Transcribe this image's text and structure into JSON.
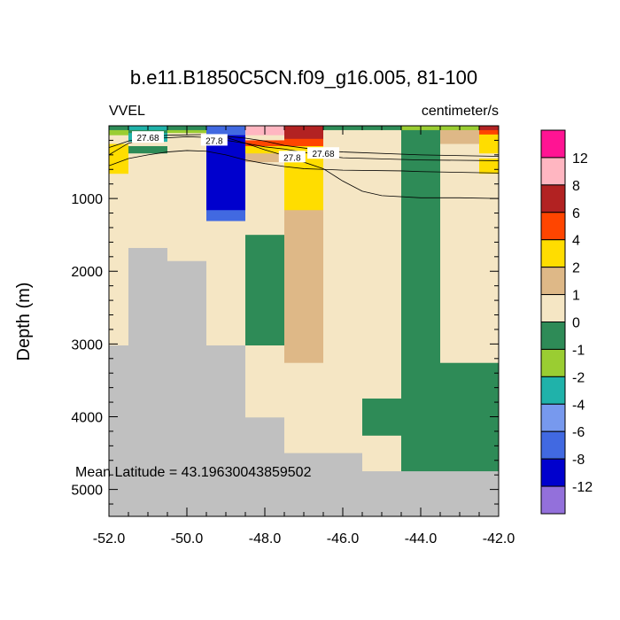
{
  "chart_data": {
    "type": "heatmap",
    "title": "b.e11.B1850C5CN.f09_g16.005, 81-100",
    "left_label": "VVEL",
    "right_label": "centimeter/s",
    "ylabel": "Depth (m)",
    "xlabel": "",
    "xlim": [
      -52.0,
      -42.0
    ],
    "ylim": [
      5370,
      0
    ],
    "x_ticks": [
      -52.0,
      -50.0,
      -48.0,
      -46.0,
      -44.0,
      -42.0
    ],
    "x_tick_labels": [
      "-52.0",
      "-50.0",
      "-48.0",
      "-46.0",
      "-44.0",
      "-42.0"
    ],
    "y_ticks": [
      1000,
      2000,
      3000,
      4000,
      5000
    ],
    "y_tick_labels": [
      "1000",
      "2000",
      "3000",
      "4000",
      "5000"
    ],
    "annotation": "Mean Latitude = 43.19630043859502",
    "colorbar": {
      "labels": [
        "12",
        "8",
        "6",
        "4",
        "2",
        "1",
        "0",
        "-1",
        "-2",
        "-4",
        "-6",
        "-8",
        "-12"
      ],
      "colors": [
        "#ff1493",
        "#ffb6c1",
        "#b22222",
        "#ff4500",
        "#ffdd00",
        "#deb887",
        "#f5e6c4",
        "#2e8b57",
        "#9acd32",
        "#20b2aa",
        "#7799ee",
        "#4169e1",
        "#0000cd",
        "#9370db"
      ]
    },
    "colors": {
      "land": "#c0c0c0",
      "background": "#f5e6c4"
    },
    "x_edges": [
      -52.0,
      -51.5,
      -50.5,
      -49.5,
      -48.5,
      -47.5,
      -46.5,
      -45.5,
      -44.5,
      -43.5,
      -42.5,
      -42.0
    ],
    "columns": [
      {
        "x_range": [
          -52.0,
          -51.5
        ],
        "cells": [
          {
            "d": [
              0,
              60
            ],
            "c": "#2e8b57"
          },
          {
            "d": [
              60,
              130
            ],
            "c": "#9acd32"
          },
          {
            "d": [
              130,
              250
            ],
            "c": "#f5e6c4"
          },
          {
            "d": [
              250,
              660
            ],
            "c": "#ffdd00"
          },
          {
            "d": [
              660,
              3020
            ],
            "c": "#f5e6c4"
          },
          {
            "d": [
              3020,
              5370
            ],
            "c": "#c0c0c0"
          }
        ]
      },
      {
        "x_range": [
          -51.5,
          -50.5
        ],
        "cells": [
          {
            "d": [
              0,
              60
            ],
            "c": "#20b2aa"
          },
          {
            "d": [
              60,
              100
            ],
            "c": "#2e8b57"
          },
          {
            "d": [
              100,
              220
            ],
            "c": "#20b2aa"
          },
          {
            "d": [
              220,
              280
            ],
            "c": "#f5e6c4"
          },
          {
            "d": [
              280,
              380
            ],
            "c": "#2e8b57"
          },
          {
            "d": [
              380,
              1680
            ],
            "c": "#f5e6c4"
          },
          {
            "d": [
              1680,
              5370
            ],
            "c": "#c0c0c0"
          }
        ]
      },
      {
        "x_range": [
          -50.5,
          -49.5
        ],
        "cells": [
          {
            "d": [
              0,
              60
            ],
            "c": "#2e8b57"
          },
          {
            "d": [
              60,
              100
            ],
            "c": "#9acd32"
          },
          {
            "d": [
              100,
              1860
            ],
            "c": "#f5e6c4"
          },
          {
            "d": [
              1860,
              5370
            ],
            "c": "#c0c0c0"
          }
        ]
      },
      {
        "x_range": [
          -49.5,
          -48.5
        ],
        "cells": [
          {
            "d": [
              0,
              130
            ],
            "c": "#4169e1"
          },
          {
            "d": [
              130,
              1160
            ],
            "c": "#0000cd"
          },
          {
            "d": [
              1160,
              1310
            ],
            "c": "#4169e1"
          },
          {
            "d": [
              1310,
              3020
            ],
            "c": "#f5e6c4"
          },
          {
            "d": [
              3020,
              5370
            ],
            "c": "#c0c0c0"
          }
        ]
      },
      {
        "x_range": [
          -48.5,
          -47.5
        ],
        "cells": [
          {
            "d": [
              0,
              130
            ],
            "c": "#ffb6c1"
          },
          {
            "d": [
              130,
              200
            ],
            "c": "#f5e6c4"
          },
          {
            "d": [
              200,
              280
            ],
            "c": "#ff4500"
          },
          {
            "d": [
              280,
              380
            ],
            "c": "#ffdd00"
          },
          {
            "d": [
              380,
              500
            ],
            "c": "#deb887"
          },
          {
            "d": [
              500,
              1500
            ],
            "c": "#f5e6c4"
          },
          {
            "d": [
              1500,
              3020
            ],
            "c": "#2e8b57"
          },
          {
            "d": [
              3020,
              4010
            ],
            "c": "#f5e6c4"
          },
          {
            "d": [
              4010,
              5370
            ],
            "c": "#c0c0c0"
          }
        ]
      },
      {
        "x_range": [
          -47.5,
          -46.5
        ],
        "cells": [
          {
            "d": [
              0,
              180
            ],
            "c": "#b22222"
          },
          {
            "d": [
              180,
              280
            ],
            "c": "#ff4500"
          },
          {
            "d": [
              280,
              1160
            ],
            "c": "#ffdd00"
          },
          {
            "d": [
              1160,
              3260
            ],
            "c": "#deb887"
          },
          {
            "d": [
              3260,
              4500
            ],
            "c": "#f5e6c4"
          },
          {
            "d": [
              4500,
              5370
            ],
            "c": "#c0c0c0"
          }
        ]
      },
      {
        "x_range": [
          -46.5,
          -45.5
        ],
        "cells": [
          {
            "d": [
              0,
              60
            ],
            "c": "#2e8b57"
          },
          {
            "d": [
              60,
              4500
            ],
            "c": "#f5e6c4"
          },
          {
            "d": [
              4500,
              5370
            ],
            "c": "#c0c0c0"
          }
        ]
      },
      {
        "x_range": [
          -45.5,
          -44.5
        ],
        "cells": [
          {
            "d": [
              0,
              60
            ],
            "c": "#2e8b57"
          },
          {
            "d": [
              60,
              3750
            ],
            "c": "#f5e6c4"
          },
          {
            "d": [
              3750,
              4260
            ],
            "c": "#2e8b57"
          },
          {
            "d": [
              4260,
              4750
            ],
            "c": "#f5e6c4"
          },
          {
            "d": [
              4750,
              5370
            ],
            "c": "#c0c0c0"
          }
        ]
      },
      {
        "x_range": [
          -44.5,
          -43.5
        ],
        "cells": [
          {
            "d": [
              0,
              60
            ],
            "c": "#9acd32"
          },
          {
            "d": [
              60,
              4750
            ],
            "c": "#2e8b57"
          },
          {
            "d": [
              4750,
              5370
            ],
            "c": "#c0c0c0"
          }
        ]
      },
      {
        "x_range": [
          -43.5,
          -42.5
        ],
        "cells": [
          {
            "d": [
              0,
              60
            ],
            "c": "#9acd32"
          },
          {
            "d": [
              60,
              250
            ],
            "c": "#deb887"
          },
          {
            "d": [
              250,
              3260
            ],
            "c": "#f5e6c4"
          },
          {
            "d": [
              3260,
              4750
            ],
            "c": "#2e8b57"
          },
          {
            "d": [
              4750,
              5370
            ],
            "c": "#c0c0c0"
          }
        ]
      },
      {
        "x_range": [
          -42.5,
          -42.0
        ],
        "cells": [
          {
            "d": [
              0,
              60
            ],
            "c": "#b22222"
          },
          {
            "d": [
              60,
              120
            ],
            "c": "#ff4500"
          },
          {
            "d": [
              120,
              380
            ],
            "c": "#ffdd00"
          },
          {
            "d": [
              380,
              450
            ],
            "c": "#f5e6c4"
          },
          {
            "d": [
              450,
              660
            ],
            "c": "#ffdd00"
          },
          {
            "d": [
              660,
              3260
            ],
            "c": "#f5e6c4"
          },
          {
            "d": [
              3260,
              4750
            ],
            "c": "#2e8b57"
          },
          {
            "d": [
              4750,
              5370
            ],
            "c": "#c0c0c0"
          }
        ]
      }
    ],
    "contours": [
      {
        "label": "27.68",
        "points": [
          [
            -52.0,
            300
          ],
          [
            -51.5,
            210
          ],
          [
            -51.0,
            160
          ],
          [
            -50.5,
            130
          ],
          [
            -49.5,
            120
          ],
          [
            -48.5,
            170
          ],
          [
            -48.0,
            210
          ],
          [
            -47.5,
            270
          ],
          [
            -46.5,
            340
          ],
          [
            -46.0,
            360
          ],
          [
            -44.0,
            400
          ],
          [
            -42.0,
            420
          ]
        ]
      },
      {
        "label": "",
        "points": [
          [
            -52.0,
            400
          ],
          [
            -51.5,
            240
          ],
          [
            -51.0,
            180
          ],
          [
            -50.0,
            150
          ],
          [
            -49.5,
            160
          ],
          [
            -48.5,
            240
          ],
          [
            -48.0,
            290
          ],
          [
            -47.5,
            320
          ],
          [
            -46.5,
            410
          ],
          [
            -46.0,
            440
          ],
          [
            -44.0,
            470
          ],
          [
            -42.0,
            480
          ]
        ]
      },
      {
        "label": "27.8",
        "points": [
          [
            -52.0,
            550
          ],
          [
            -51.5,
            450
          ],
          [
            -51.0,
            400
          ],
          [
            -50.5,
            360
          ],
          [
            -50.0,
            340
          ],
          [
            -49.5,
            350
          ],
          [
            -49.0,
            400
          ],
          [
            -48.5,
            470
          ],
          [
            -48.0,
            520
          ],
          [
            -47.5,
            560
          ],
          [
            -47.0,
            590
          ],
          [
            -46.5,
            600
          ],
          [
            -46.0,
            610
          ],
          [
            -44.5,
            620
          ],
          [
            -44.0,
            630
          ],
          [
            -42.0,
            650
          ]
        ]
      },
      {
        "label": "",
        "points": [
          [
            -49.0,
            160
          ],
          [
            -48.5,
            240
          ],
          [
            -48.0,
            330
          ],
          [
            -47.5,
            410
          ],
          [
            -47.0,
            500
          ],
          [
            -46.5,
            590
          ],
          [
            -46.0,
            760
          ],
          [
            -45.5,
            900
          ],
          [
            -45.0,
            960
          ],
          [
            -44.0,
            990
          ],
          [
            -43.0,
            990
          ],
          [
            -42.0,
            1000
          ]
        ]
      }
    ],
    "contour_labels": [
      {
        "text": "27.68",
        "x": -51.0,
        "y": 160
      },
      {
        "text": "27.8",
        "x": -49.3,
        "y": 200
      },
      {
        "text": "27.8",
        "x": -47.3,
        "y": 430
      },
      {
        "text": "27.68",
        "x": -46.5,
        "y": 380
      }
    ]
  }
}
